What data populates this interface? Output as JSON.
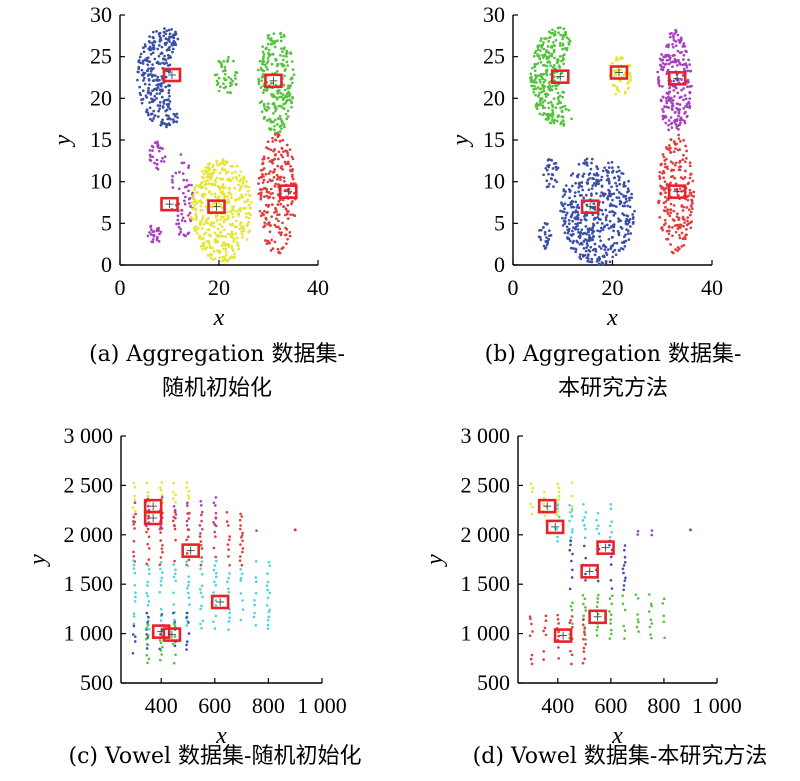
{
  "colors": {
    "blue": "#3b4fa8",
    "green": "#54c23c",
    "red": "#e33b3b",
    "purple": "#a540bf",
    "yellow": "#e6e62e",
    "cyan": "#4fd2dc",
    "center_box": "#e8222a"
  },
  "chart_data": [
    {
      "type": "scatter",
      "caption": "(a) Aggregation 数据集-随机初始化",
      "caption_lines": [
        "(a) Aggregation 数据集-",
        "随机初始化"
      ],
      "xlabel": "x",
      "ylabel": "y",
      "xlim": [
        0,
        40
      ],
      "ylim": [
        0,
        30
      ],
      "xticks": [
        0,
        20,
        40
      ],
      "xtick_labels": [
        "0",
        "20",
        "40"
      ],
      "yticks": [
        0,
        5,
        10,
        15,
        20,
        25,
        30
      ],
      "ytick_labels": [
        "0",
        "5",
        "10",
        "15",
        "20",
        "25",
        "30"
      ],
      "clusters": [
        {
          "color": "blue",
          "shape": "crescent",
          "cx": 9,
          "cy": 22.5,
          "rx": 5.5,
          "ry": 6,
          "cut_x": 14,
          "cut_r": 4,
          "n": 280
        },
        {
          "color": "green",
          "shape": "ellipse",
          "cx": 21.5,
          "cy": 22.7,
          "rx": 2.3,
          "ry": 2.4,
          "n": 45
        },
        {
          "color": "green",
          "shape": "ellipse",
          "cx": 31.5,
          "cy": 22,
          "rx": 3.7,
          "ry": 6.2,
          "n": 230
        },
        {
          "color": "red",
          "shape": "ellipse",
          "cx": 31.8,
          "cy": 8.5,
          "rx": 3.9,
          "ry": 7.2,
          "n": 220
        },
        {
          "color": "purple",
          "shape": "ellipse",
          "cx": 7.5,
          "cy": 13,
          "rx": 1.7,
          "ry": 1.8,
          "n": 30
        },
        {
          "color": "purple",
          "shape": "ellipse",
          "cx": 12.5,
          "cy": 8,
          "rx": 2.3,
          "ry": 5.5,
          "n": 60
        },
        {
          "color": "purple",
          "shape": "ellipse",
          "cx": 7,
          "cy": 3.5,
          "rx": 1.4,
          "ry": 1.6,
          "n": 25
        },
        {
          "color": "yellow",
          "shape": "ellipse",
          "cx": 20.5,
          "cy": 6.5,
          "rx": 6.2,
          "ry": 6.2,
          "n": 420
        }
      ],
      "centers": [
        [
          10.5,
          22.8
        ],
        [
          31,
          22.1
        ],
        [
          34,
          8.8
        ],
        [
          10,
          7.3
        ],
        [
          19.5,
          7
        ]
      ]
    },
    {
      "type": "scatter",
      "caption": "(b) Aggregation 数据集-本研究方法",
      "caption_lines": [
        "(b) Aggregation 数据集-",
        "本研究方法"
      ],
      "xlabel": "x",
      "ylabel": "y",
      "xlim": [
        0,
        40
      ],
      "ylim": [
        0,
        30
      ],
      "xticks": [
        0,
        20,
        40
      ],
      "xtick_labels": [
        "0",
        "20",
        "40"
      ],
      "yticks": [
        0,
        5,
        10,
        15,
        20,
        25,
        30
      ],
      "ytick_labels": [
        "0",
        "5",
        "10",
        "15",
        "20",
        "25",
        "30"
      ],
      "clusters": [
        {
          "color": "green",
          "shape": "crescent",
          "cx": 9,
          "cy": 22.5,
          "rx": 5.5,
          "ry": 6,
          "cut_x": 14,
          "cut_r": 4,
          "n": 280
        },
        {
          "color": "yellow",
          "shape": "ellipse",
          "cx": 21.5,
          "cy": 22.7,
          "rx": 2.3,
          "ry": 2.4,
          "n": 45
        },
        {
          "color": "purple",
          "shape": "ellipse",
          "cx": 32.5,
          "cy": 22,
          "rx": 3.5,
          "ry": 6.2,
          "n": 230
        },
        {
          "color": "red",
          "shape": "ellipse",
          "cx": 32.8,
          "cy": 8.5,
          "rx": 3.6,
          "ry": 7.2,
          "n": 220
        },
        {
          "color": "blue",
          "shape": "ellipse",
          "cx": 7.5,
          "cy": 11,
          "rx": 1.8,
          "ry": 1.8,
          "n": 30
        },
        {
          "color": "blue",
          "shape": "ellipse",
          "cx": 6.5,
          "cy": 3.5,
          "rx": 1.4,
          "ry": 1.6,
          "n": 25
        },
        {
          "color": "blue",
          "shape": "ellipse",
          "cx": 17,
          "cy": 6.5,
          "rx": 7.5,
          "ry": 6.5,
          "n": 470
        }
      ],
      "centers": [
        [
          9.5,
          22.6
        ],
        [
          21.3,
          23.1
        ],
        [
          33,
          22.4
        ],
        [
          33,
          8.8
        ],
        [
          15.5,
          7
        ]
      ]
    },
    {
      "type": "scatter",
      "caption": "(c) Vowel 数据集-随机初始化",
      "xlabel": "x",
      "ylabel": "y",
      "xlim": [
        250,
        1000
      ],
      "ylim": [
        500,
        3000
      ],
      "xticks": [
        400,
        600,
        800,
        1000
      ],
      "xtick_labels": [
        "400",
        "600",
        "800",
        "1 000"
      ],
      "yticks": [
        500,
        1000,
        1500,
        2000,
        2500,
        3000
      ],
      "ytick_labels": [
        "500",
        "1 000",
        "1 500",
        "2 000",
        "2 500",
        "3 000"
      ],
      "columns_x": [
        300,
        350,
        400,
        450,
        500,
        550,
        600,
        650,
        700,
        750,
        800
      ],
      "bands": [
        {
          "color": "yellow",
          "x": [
            300,
            500
          ],
          "y": [
            2200,
            2550
          ]
        },
        {
          "color": "purple",
          "x": [
            300,
            600
          ],
          "y": [
            2050,
            2400
          ]
        },
        {
          "color": "red",
          "x": [
            300,
            700
          ],
          "y": [
            1700,
            2250
          ]
        },
        {
          "color": "cyan",
          "x": [
            300,
            800
          ],
          "y": [
            1050,
            1750
          ]
        },
        {
          "color": "blue",
          "x": [
            300,
            500
          ],
          "y": [
            800,
            1200
          ]
        },
        {
          "color": "green",
          "x": [
            330,
            480
          ],
          "y": [
            700,
            1100
          ]
        },
        {
          "color": "purple",
          "x": [
            700,
            760
          ],
          "y": [
            2000,
            2060
          ]
        }
      ],
      "outliers": [
        {
          "color": "red",
          "x": 900,
          "y": 2050
        }
      ],
      "centers": [
        [
          370,
          2290
        ],
        [
          370,
          2170
        ],
        [
          510,
          1840
        ],
        [
          620,
          1320
        ],
        [
          400,
          1020
        ],
        [
          440,
          990
        ]
      ]
    },
    {
      "type": "scatter",
      "caption": "(d) Vowel 数据集-本研究方法",
      "xlabel": "x",
      "ylabel": "y",
      "xlim": [
        250,
        1000
      ],
      "ylim": [
        500,
        3000
      ],
      "xticks": [
        400,
        600,
        800,
        1000
      ],
      "xtick_labels": [
        "400",
        "600",
        "800",
        "1 000"
      ],
      "yticks": [
        500,
        1000,
        1500,
        2000,
        2500,
        3000
      ],
      "ytick_labels": [
        "500",
        "1 000",
        "1 500",
        "2 000",
        "2 500",
        "3 000"
      ],
      "columns_x": [
        300,
        350,
        400,
        450,
        500,
        550,
        600,
        650,
        700,
        750,
        800
      ],
      "bands": [
        {
          "color": "yellow",
          "x": [
            300,
            450
          ],
          "y": [
            2200,
            2550
          ]
        },
        {
          "color": "cyan",
          "x": [
            400,
            600
          ],
          "y": [
            1900,
            2300
          ]
        },
        {
          "color": "blue",
          "x": [
            450,
            650
          ],
          "y": [
            1450,
            1950
          ]
        },
        {
          "color": "green",
          "x": [
            450,
            800
          ],
          "y": [
            950,
            1400
          ]
        },
        {
          "color": "red",
          "x": [
            300,
            500
          ],
          "y": [
            700,
            1200
          ]
        },
        {
          "color": "purple",
          "x": [
            700,
            760
          ],
          "y": [
            2000,
            2060
          ]
        }
      ],
      "outliers": [
        {
          "color": "purple",
          "x": 900,
          "y": 2050
        }
      ],
      "centers": [
        [
          360,
          2290
        ],
        [
          390,
          2080
        ],
        [
          580,
          1870
        ],
        [
          520,
          1630
        ],
        [
          550,
          1170
        ],
        [
          420,
          980
        ]
      ]
    }
  ]
}
